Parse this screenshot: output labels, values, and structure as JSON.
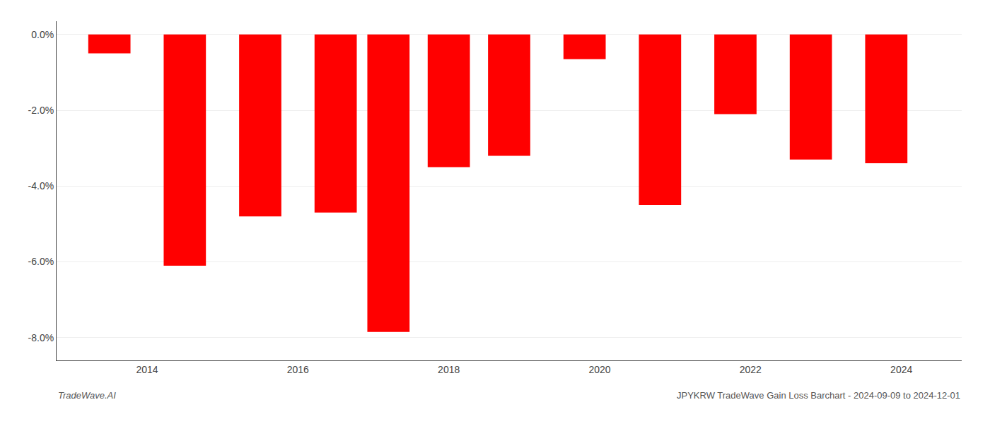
{
  "chart_data": {
    "type": "bar",
    "title": "JPYKRW TradeWave Gain Loss Barchart - 2024-09-09 to 2024-12-01",
    "annotations": [
      "TradeWave.AI"
    ],
    "x": [
      2013.5,
      2014.5,
      2015.5,
      2016.5,
      2017.2,
      2018.0,
      2018.8,
      2019.8,
      2020.8,
      2021.8,
      2022.8,
      2023.8
    ],
    "values": [
      -0.5,
      -6.1,
      -4.8,
      -4.7,
      -7.85,
      -3.5,
      -3.2,
      -0.65,
      -4.5,
      -2.1,
      -3.3,
      -3.4
    ],
    "color": "#ff0000",
    "xlim": [
      2012.8,
      2024.8
    ],
    "xticks": [
      2014,
      2016,
      2018,
      2020,
      2022,
      2024
    ],
    "ylim": [
      -8.6,
      0.35
    ],
    "yticks": [
      {
        "value": 0.0,
        "label": "0.0%"
      },
      {
        "value": -2.0,
        "label": "-2.0%"
      },
      {
        "value": -4.0,
        "label": "-4.0%"
      },
      {
        "value": -6.0,
        "label": "-6.0%"
      },
      {
        "value": -8.0,
        "label": "-8.0%"
      }
    ],
    "grid": true
  }
}
